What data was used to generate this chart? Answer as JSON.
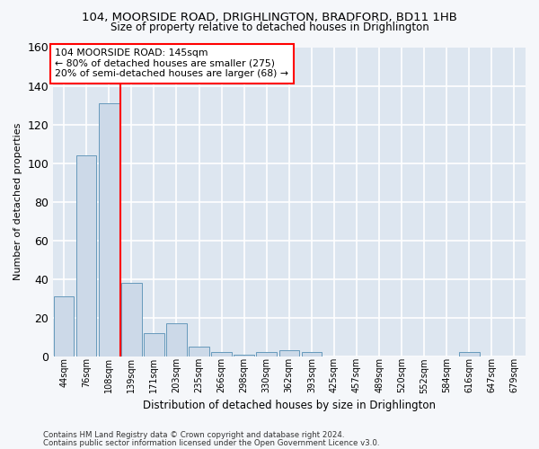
{
  "title": "104, MOORSIDE ROAD, DRIGHLINGTON, BRADFORD, BD11 1HB",
  "subtitle": "Size of property relative to detached houses in Drighlington",
  "xlabel": "Distribution of detached houses by size in Drighlington",
  "ylabel": "Number of detached properties",
  "bar_color": "#ccd9e8",
  "bar_edge_color": "#6699bb",
  "background_color": "#dde6f0",
  "fig_background_color": "#f5f7fa",
  "grid_color": "#ffffff",
  "bin_labels": [
    "44sqm",
    "76sqm",
    "108sqm",
    "139sqm",
    "171sqm",
    "203sqm",
    "235sqm",
    "266sqm",
    "298sqm",
    "330sqm",
    "362sqm",
    "393sqm",
    "425sqm",
    "457sqm",
    "489sqm",
    "520sqm",
    "552sqm",
    "584sqm",
    "616sqm",
    "647sqm",
    "679sqm"
  ],
  "bar_values": [
    31,
    104,
    131,
    38,
    12,
    17,
    5,
    2,
    1,
    2,
    3,
    2,
    0,
    0,
    0,
    0,
    0,
    0,
    2,
    0,
    0
  ],
  "annotation_line1": "104 MOORSIDE ROAD: 145sqm",
  "annotation_line2": "← 80% of detached houses are smaller (275)",
  "annotation_line3": "20% of semi-detached houses are larger (68) →",
  "ylim": [
    0,
    160
  ],
  "yticks": [
    0,
    20,
    40,
    60,
    80,
    100,
    120,
    140,
    160
  ],
  "footer_line1": "Contains HM Land Registry data © Crown copyright and database right 2024.",
  "footer_line2": "Contains public sector information licensed under the Open Government Licence v3.0."
}
